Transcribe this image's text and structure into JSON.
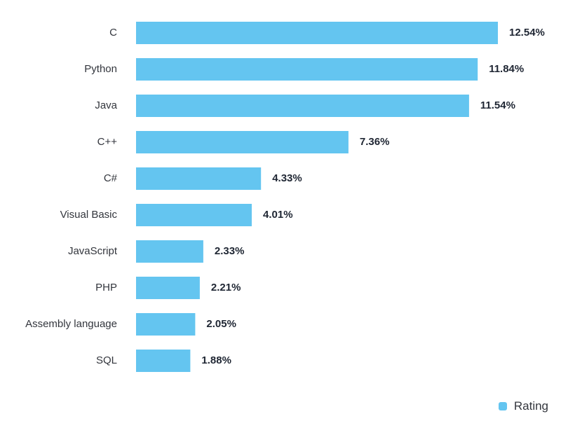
{
  "chart_data": {
    "type": "bar",
    "orientation": "horizontal",
    "categories": [
      "C",
      "Python",
      "Java",
      "C++",
      "C#",
      "Visual Basic",
      "JavaScript",
      "PHP",
      "Assembly language",
      "SQL"
    ],
    "series": [
      {
        "name": "Rating",
        "values": [
          12.54,
          11.84,
          11.54,
          7.36,
          4.33,
          4.01,
          2.33,
          2.21,
          2.05,
          1.88
        ],
        "value_labels": [
          "12.54%",
          "11.84%",
          "11.54%",
          "7.36%",
          "4.33%",
          "4.01%",
          "2.33%",
          "2.21%",
          "2.05%",
          "1.88%"
        ],
        "color": "#64c5f0"
      }
    ],
    "title": "",
    "xlabel": "",
    "ylabel": "",
    "xlim": [
      0,
      12.54
    ],
    "grid": false,
    "legend": {
      "position": "bottom-right",
      "label": "Rating"
    }
  },
  "colors": {
    "bar": "#64c5f0",
    "label_text": "#33363d",
    "value_text": "#1f2633",
    "background": "#ffffff"
  }
}
